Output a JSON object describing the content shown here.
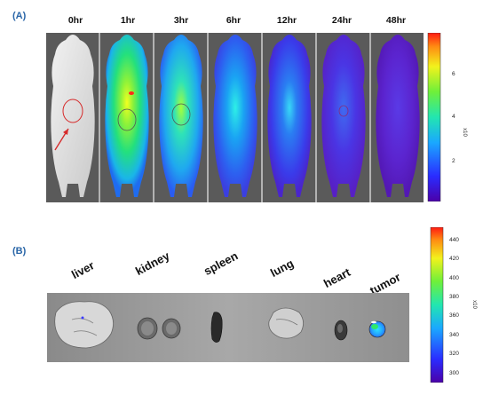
{
  "panel_a": {
    "label": "(A)",
    "time_points": [
      "0hr",
      "1hr",
      "3hr",
      "6hr",
      "12hr",
      "24hr",
      "48hr"
    ],
    "colorbar": {
      "ticks": [
        "6",
        "4",
        "2"
      ],
      "unit": "x10"
    }
  },
  "panel_b": {
    "label": "(B)",
    "organs": [
      "liver",
      "kidney",
      "spleen",
      "lung",
      "heart",
      "tumor"
    ],
    "colorbar": {
      "ticks": [
        "440",
        "420",
        "400",
        "380",
        "360",
        "340",
        "320",
        "300"
      ],
      "unit": "x10"
    }
  },
  "colors": {
    "label_blue": "#2a66a8",
    "image_bg": "#5a5a5a",
    "annotation_red": "#d62b2b"
  }
}
